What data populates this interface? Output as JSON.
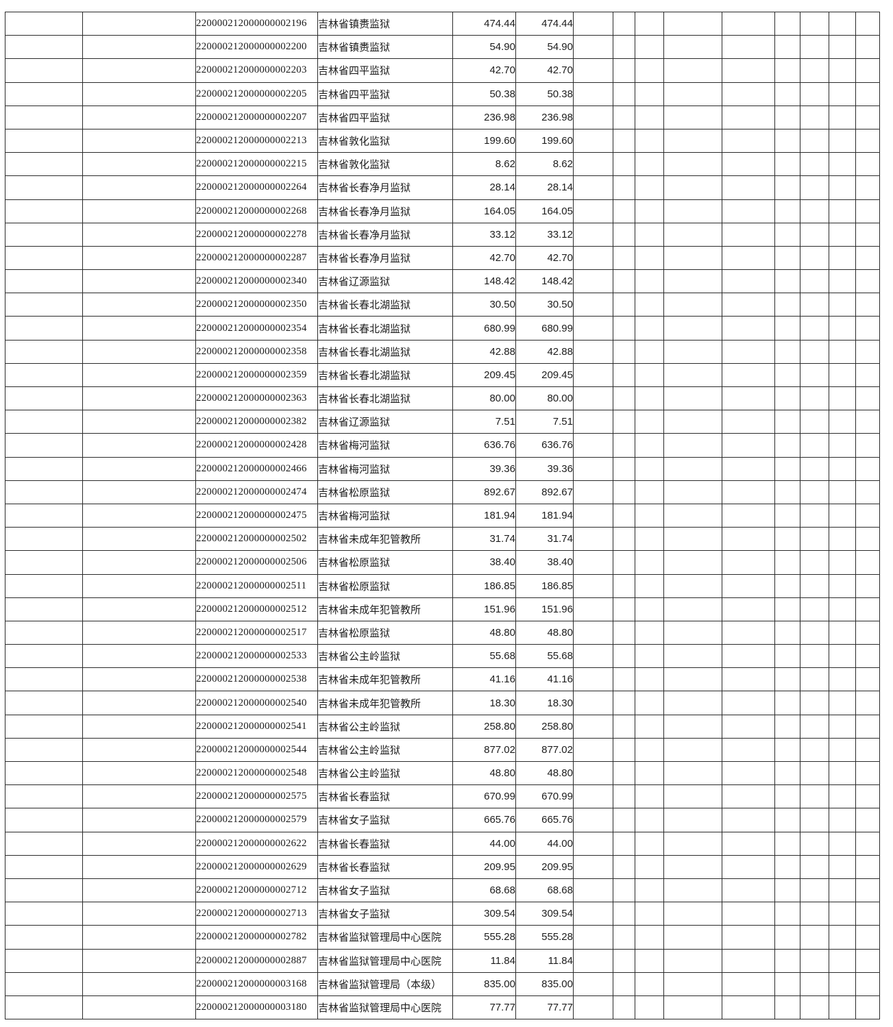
{
  "table": {
    "rows": [
      {
        "id": "220000212000000002196",
        "name": "吉林省镇赉监狱",
        "amount1": "474.44",
        "amount2": "474.44"
      },
      {
        "id": "220000212000000002200",
        "name": "吉林省镇赉监狱",
        "amount1": "54.90",
        "amount2": "54.90"
      },
      {
        "id": "220000212000000002203",
        "name": "吉林省四平监狱",
        "amount1": "42.70",
        "amount2": "42.70"
      },
      {
        "id": "220000212000000002205",
        "name": "吉林省四平监狱",
        "amount1": "50.38",
        "amount2": "50.38"
      },
      {
        "id": "220000212000000002207",
        "name": "吉林省四平监狱",
        "amount1": "236.98",
        "amount2": "236.98"
      },
      {
        "id": "220000212000000002213",
        "name": "吉林省敦化监狱",
        "amount1": "199.60",
        "amount2": "199.60"
      },
      {
        "id": "220000212000000002215",
        "name": "吉林省敦化监狱",
        "amount1": "8.62",
        "amount2": "8.62"
      },
      {
        "id": "220000212000000002264",
        "name": "吉林省长春净月监狱",
        "amount1": "28.14",
        "amount2": "28.14"
      },
      {
        "id": "220000212000000002268",
        "name": "吉林省长春净月监狱",
        "amount1": "164.05",
        "amount2": "164.05"
      },
      {
        "id": "220000212000000002278",
        "name": "吉林省长春净月监狱",
        "amount1": "33.12",
        "amount2": "33.12"
      },
      {
        "id": "220000212000000002287",
        "name": "吉林省长春净月监狱",
        "amount1": "42.70",
        "amount2": "42.70"
      },
      {
        "id": "220000212000000002340",
        "name": "吉林省辽源监狱",
        "amount1": "148.42",
        "amount2": "148.42"
      },
      {
        "id": "220000212000000002350",
        "name": "吉林省长春北湖监狱",
        "amount1": "30.50",
        "amount2": "30.50"
      },
      {
        "id": "220000212000000002354",
        "name": "吉林省长春北湖监狱",
        "amount1": "680.99",
        "amount2": "680.99"
      },
      {
        "id": "220000212000000002358",
        "name": "吉林省长春北湖监狱",
        "amount1": "42.88",
        "amount2": "42.88"
      },
      {
        "id": "220000212000000002359",
        "name": "吉林省长春北湖监狱",
        "amount1": "209.45",
        "amount2": "209.45"
      },
      {
        "id": "220000212000000002363",
        "name": "吉林省长春北湖监狱",
        "amount1": "80.00",
        "amount2": "80.00"
      },
      {
        "id": "220000212000000002382",
        "name": "吉林省辽源监狱",
        "amount1": "7.51",
        "amount2": "7.51"
      },
      {
        "id": "220000212000000002428",
        "name": "吉林省梅河监狱",
        "amount1": "636.76",
        "amount2": "636.76"
      },
      {
        "id": "220000212000000002466",
        "name": "吉林省梅河监狱",
        "amount1": "39.36",
        "amount2": "39.36"
      },
      {
        "id": "220000212000000002474",
        "name": "吉林省松原监狱",
        "amount1": "892.67",
        "amount2": "892.67"
      },
      {
        "id": "220000212000000002475",
        "name": "吉林省梅河监狱",
        "amount1": "181.94",
        "amount2": "181.94"
      },
      {
        "id": "220000212000000002502",
        "name": "吉林省未成年犯管教所",
        "amount1": "31.74",
        "amount2": "31.74"
      },
      {
        "id": "220000212000000002506",
        "name": "吉林省松原监狱",
        "amount1": "38.40",
        "amount2": "38.40"
      },
      {
        "id": "220000212000000002511",
        "name": "吉林省松原监狱",
        "amount1": "186.85",
        "amount2": "186.85"
      },
      {
        "id": "220000212000000002512",
        "name": "吉林省未成年犯管教所",
        "amount1": "151.96",
        "amount2": "151.96"
      },
      {
        "id": "220000212000000002517",
        "name": "吉林省松原监狱",
        "amount1": "48.80",
        "amount2": "48.80"
      },
      {
        "id": "220000212000000002533",
        "name": "吉林省公主岭监狱",
        "amount1": "55.68",
        "amount2": "55.68"
      },
      {
        "id": "220000212000000002538",
        "name": "吉林省未成年犯管教所",
        "amount1": "41.16",
        "amount2": "41.16"
      },
      {
        "id": "220000212000000002540",
        "name": "吉林省未成年犯管教所",
        "amount1": "18.30",
        "amount2": "18.30"
      },
      {
        "id": "220000212000000002541",
        "name": "吉林省公主岭监狱",
        "amount1": "258.80",
        "amount2": "258.80"
      },
      {
        "id": "220000212000000002544",
        "name": "吉林省公主岭监狱",
        "amount1": "877.02",
        "amount2": "877.02"
      },
      {
        "id": "220000212000000002548",
        "name": "吉林省公主岭监狱",
        "amount1": "48.80",
        "amount2": "48.80"
      },
      {
        "id": "220000212000000002575",
        "name": "吉林省长春监狱",
        "amount1": "670.99",
        "amount2": "670.99"
      },
      {
        "id": "220000212000000002579",
        "name": "吉林省女子监狱",
        "amount1": "665.76",
        "amount2": "665.76"
      },
      {
        "id": "220000212000000002622",
        "name": "吉林省长春监狱",
        "amount1": "44.00",
        "amount2": "44.00"
      },
      {
        "id": "220000212000000002629",
        "name": "吉林省长春监狱",
        "amount1": "209.95",
        "amount2": "209.95"
      },
      {
        "id": "220000212000000002712",
        "name": "吉林省女子监狱",
        "amount1": "68.68",
        "amount2": "68.68"
      },
      {
        "id": "220000212000000002713",
        "name": "吉林省女子监狱",
        "amount1": "309.54",
        "amount2": "309.54"
      },
      {
        "id": "220000212000000002782",
        "name": "吉林省监狱管理局中心医院",
        "amount1": "555.28",
        "amount2": "555.28"
      },
      {
        "id": "220000212000000002887",
        "name": "吉林省监狱管理局中心医院",
        "amount1": "11.84",
        "amount2": "11.84"
      },
      {
        "id": "220000212000000003168",
        "name": "吉林省监狱管理局（本级）",
        "amount1": "835.00",
        "amount2": "835.00"
      },
      {
        "id": "220000212000000003180",
        "name": "吉林省监狱管理局中心医院",
        "amount1": "77.77",
        "amount2": "77.77"
      }
    ]
  }
}
